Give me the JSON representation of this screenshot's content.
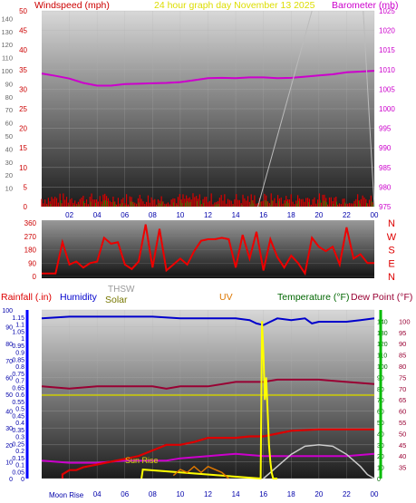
{
  "header": {
    "windspeed_label": "Windspeed (mph)",
    "center_title": "24 hour graph day   November 13 2025",
    "barometer_label": "Barometer (mb)"
  },
  "bottom_header": {
    "rainfall_label": "Rainfall (.in)",
    "humidity_label": "Humidity",
    "thsw_label": "THSW",
    "solar_label": "Solar",
    "uv_label": "UV",
    "temperature_label": "Temperature (°F)",
    "dewpoint_label": "Dew Point (°F)"
  },
  "annotations": {
    "sun_rise": "Sun Rise",
    "moon_rise": "Moon Rise"
  },
  "colors": {
    "windspeed": "#dd0000",
    "barometer": "#cc00cc",
    "title": "#dddd00",
    "rainfall": "#dd0000",
    "humidity": "#0000cc",
    "thsw": "#999999",
    "solar": "#dddd00",
    "uv": "#dd7700",
    "temperature": "#006600",
    "dewpoint": "#990033",
    "axis_blue": "#0000ff",
    "axis_green": "#00bb00"
  },
  "chart_data": [
    {
      "type": "line",
      "title": "24 hour graph day   November 13 2025",
      "x_ticks": [
        "02",
        "04",
        "06",
        "08",
        "10",
        "12",
        "14",
        "16",
        "18",
        "20",
        "22",
        "00"
      ],
      "left_axis": {
        "label": "Windspeed (mph)",
        "ylim": [
          0,
          50
        ],
        "ticks": [
          0,
          5,
          10,
          15,
          20,
          25,
          30,
          35,
          40,
          45,
          50
        ]
      },
      "left_axis_km": {
        "ylim": [
          0,
          80
        ],
        "ticks": [
          10,
          20,
          30,
          40,
          50,
          60,
          70,
          80,
          90,
          100,
          110,
          120,
          130,
          140
        ]
      },
      "right_axis": {
        "label": "Barometer (mb)",
        "ylim": [
          975,
          1025
        ],
        "ticks": [
          975,
          980,
          985,
          990,
          995,
          1000,
          1005,
          1010,
          1015,
          1020,
          1025
        ]
      },
      "series": [
        {
          "name": "Barometer",
          "color": "#cc00cc",
          "x": [
            0,
            1,
            2,
            3,
            4,
            5,
            6,
            7,
            8,
            9,
            10,
            11,
            12,
            13,
            14,
            15,
            16,
            17,
            18,
            19,
            20,
            21,
            22,
            23,
            24
          ],
          "values": [
            1009,
            1008.4,
            1007.7,
            1006.6,
            1005.9,
            1005.9,
            1006.3,
            1006.4,
            1006.5,
            1006.6,
            1006.8,
            1007.3,
            1007.8,
            1007.9,
            1007.8,
            1008,
            1008,
            1007.8,
            1007.9,
            1008.2,
            1008.5,
            1008.8,
            1009.3,
            1009.5,
            1009.7
          ]
        }
      ]
    },
    {
      "type": "line",
      "title": "Wind direction",
      "y_ticks": [
        0,
        90,
        180,
        270,
        360
      ],
      "compass": [
        "N",
        "W",
        "S",
        "E",
        "N"
      ],
      "series": [
        {
          "name": "Wind direction",
          "color": "#ee0000",
          "x": [
            0,
            1,
            1.5,
            2,
            2.5,
            3,
            3.5,
            4,
            4.5,
            5,
            5.5,
            6,
            6.5,
            7,
            7.5,
            8,
            8.5,
            9,
            9.5,
            10,
            10.5,
            11,
            11.5,
            12,
            12.5,
            13,
            13.5,
            14,
            14.5,
            15,
            15.5,
            16,
            16.5,
            17,
            17.5,
            18,
            18.5,
            19,
            19.5,
            20,
            20.5,
            21,
            21.5,
            22,
            22.5,
            23,
            23.5,
            24
          ],
          "values": [
            20,
            20,
            230,
            80,
            100,
            60,
            90,
            100,
            260,
            220,
            230,
            80,
            50,
            100,
            350,
            60,
            320,
            40,
            80,
            120,
            80,
            170,
            240,
            250,
            250,
            260,
            250,
            60,
            280,
            120,
            300,
            40,
            250,
            130,
            60,
            140,
            90,
            20,
            260,
            200,
            170,
            200,
            80,
            330,
            120,
            150,
            90,
            90
          ]
        }
      ]
    },
    {
      "type": "line",
      "left_axis_rain": {
        "label": "Rainfall (.in)",
        "ylim": [
          0,
          1.2
        ],
        "ticks": [
          0,
          0.05,
          0.1,
          0.15,
          0.2,
          0.25,
          0.3,
          0.35,
          0.4,
          0.45,
          0.5,
          0.55,
          0.6,
          0.65,
          0.7,
          0.75,
          0.8,
          0.85,
          0.9,
          0.95,
          1,
          1.05,
          1.1,
          1.15
        ]
      },
      "left_axis_humidity": {
        "label": "Humidity",
        "ylim": [
          0,
          100
        ],
        "ticks": [
          0,
          10,
          20,
          30,
          40,
          50,
          60,
          70,
          80,
          90,
          100
        ]
      },
      "right_axis_solar": {
        "ylim": [
          0,
          150
        ],
        "ticks": [
          0,
          10,
          20,
          30,
          40,
          50,
          60,
          70,
          80,
          90,
          100,
          110,
          120,
          130,
          140
        ]
      },
      "right_axis_temp": {
        "label": "Temperature (°F)",
        "ylim": [
          30,
          105
        ],
        "ticks": [
          35,
          40,
          45,
          50,
          55,
          60,
          65,
          70,
          75,
          80,
          85,
          90,
          95,
          100
        ]
      },
      "x_ticks": [
        "02",
        "04",
        "06",
        "08",
        "10",
        "12",
        "14",
        "16",
        "18",
        "20",
        "22",
        "00"
      ],
      "series": [
        {
          "name": "Humidity",
          "color": "#0000cc",
          "x": [
            0,
            2,
            4,
            6,
            8,
            10,
            12,
            14,
            15,
            15.5,
            16,
            16.5,
            17,
            18,
            19,
            19.5,
            20,
            21,
            22,
            23,
            24
          ],
          "values": [
            95,
            96,
            96,
            96,
            96,
            95,
            95,
            95,
            94,
            92,
            91,
            93,
            95,
            94,
            95,
            92,
            93,
            93,
            93,
            94,
            95
          ]
        },
        {
          "name": "Temperature",
          "color": "#990033",
          "x": [
            0,
            2,
            4,
            6,
            8,
            9,
            10,
            12,
            14,
            16,
            17,
            18,
            19,
            20,
            22,
            24
          ],
          "values": [
            71,
            70,
            71,
            71,
            71,
            70,
            71,
            71,
            73,
            73,
            74,
            74,
            74,
            74,
            73,
            72
          ]
        },
        {
          "name": "Dew Point",
          "color": "#cc00cc",
          "x": [
            0,
            2,
            4,
            6,
            8,
            9,
            10,
            12,
            14,
            16,
            18,
            20,
            22,
            24
          ],
          "values": [
            38,
            37,
            37,
            38,
            38,
            38,
            39,
            40,
            41,
            40,
            40,
            40,
            40,
            41
          ]
        },
        {
          "name": "Rainfall",
          "color": "#dd0000",
          "x": [
            1.5,
            2,
            2.5,
            3,
            4,
            5,
            6,
            7,
            8,
            9,
            10,
            11,
            12,
            14,
            15,
            16,
            18,
            20,
            22,
            24
          ],
          "values": [
            0.03,
            0.06,
            0.06,
            0.08,
            0.1,
            0.12,
            0.14,
            0.16,
            0.2,
            0.24,
            0.24,
            0.26,
            0.29,
            0.29,
            0.3,
            0.3,
            0.34,
            0.35,
            0.35,
            0.35
          ]
        },
        {
          "name": "THSW",
          "color": "#cccccc",
          "x": [
            16,
            17,
            18,
            19,
            20,
            21,
            22,
            23,
            23.5,
            24
          ],
          "values": [
            0,
            15,
            30,
            40,
            42,
            40,
            30,
            15,
            5,
            0
          ]
        },
        {
          "name": "Solar",
          "color": "#ffff00",
          "x": [
            7.2,
            7.3,
            15.8,
            15.9,
            16,
            16.1,
            16.2,
            16.3,
            16.4,
            16.5,
            16.6,
            16.7,
            17
          ],
          "values": [
            0,
            8,
            0,
            140,
            110,
            70,
            90,
            60,
            30,
            15,
            5,
            0,
            0
          ]
        },
        {
          "name": "UV",
          "color": "#dd7700",
          "x": [
            9.5,
            10,
            10.5,
            11,
            11.5,
            12,
            12.5,
            13,
            13.5
          ],
          "values": [
            1,
            3,
            2,
            4,
            2,
            4,
            3,
            2,
            0
          ]
        }
      ]
    }
  ]
}
